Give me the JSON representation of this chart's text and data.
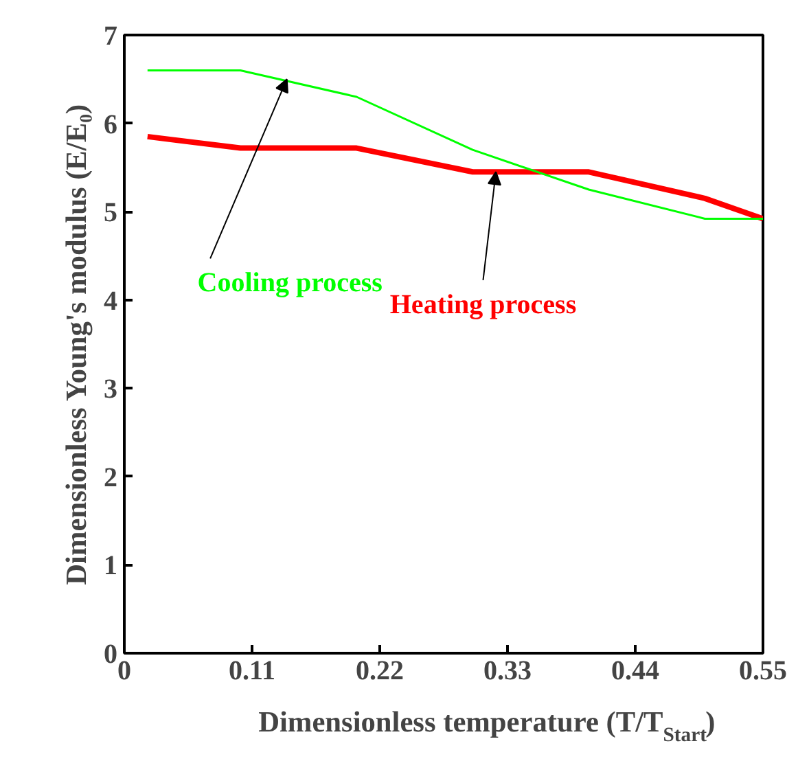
{
  "chart_data": {
    "type": "line",
    "xlabel": "Dimensionless temperature (T/T$_{Start}$)",
    "ylabel": "Dimensionless Young's modulus (E/E₀)",
    "series": [
      {
        "color": "#00ff00",
        "x": [
          0.02,
          0.1,
          0.2,
          0.3,
          0.4,
          0.5,
          0.55
        ],
        "values": [
          6.6,
          6.6,
          6.3,
          5.7,
          5.25,
          4.92,
          4.92
        ]
      },
      {
        "color": "#ff0000",
        "x": [
          0.02,
          0.1,
          0.2,
          0.3,
          0.4,
          0.5,
          0.55
        ],
        "values": [
          5.85,
          5.72,
          5.72,
          5.45,
          5.45,
          5.15,
          4.92
        ]
      }
    ],
    "annotations": [
      {
        "text": "Cooling process",
        "x": 0.14,
        "y": 6.5
      },
      {
        "text": "Heating process",
        "x": 0.32,
        "y": 5.45
      }
    ],
    "xlim": [
      0,
      0.55
    ],
    "ylim": [
      0,
      7
    ],
    "xticks": [
      0,
      0.11,
      0.22,
      0.33,
      0.44,
      0.55
    ],
    "yticks": [
      0,
      1,
      2,
      3,
      4,
      5,
      6,
      7
    ],
    "grid": false,
    "marker": "none",
    "line_style": "solid"
  }
}
